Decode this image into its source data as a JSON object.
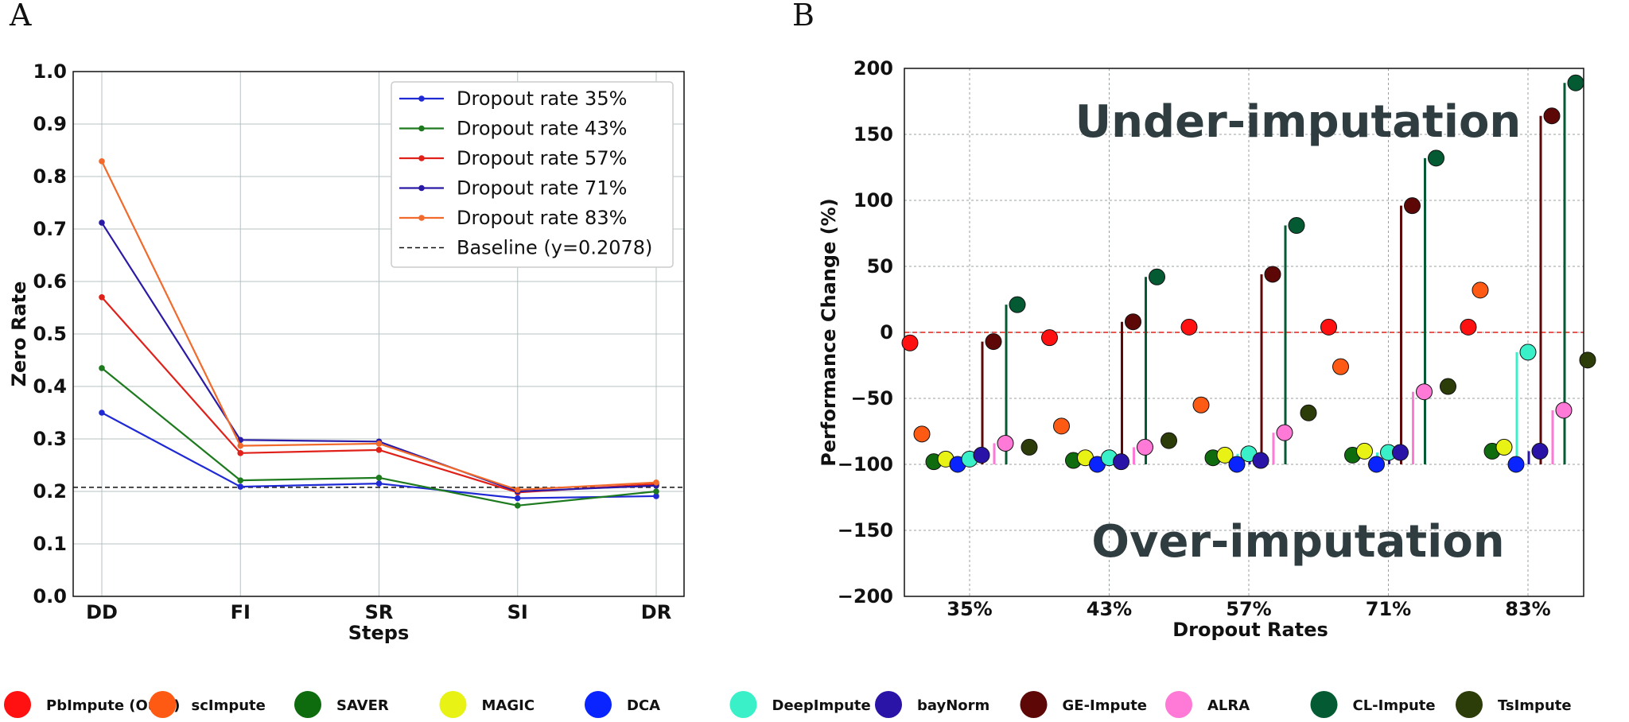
{
  "chart_data": [
    {
      "panel": "A",
      "type": "line",
      "xlabel": "Steps",
      "ylabel": "Zero Rate",
      "categories": [
        "DD",
        "FI",
        "SR",
        "SI",
        "DR"
      ],
      "ylim": [
        0.0,
        1.0
      ],
      "yticks": [
        "0.0",
        "0.1",
        "0.2",
        "0.3",
        "0.4",
        "0.5",
        "0.6",
        "0.7",
        "0.8",
        "0.9",
        "1.0"
      ],
      "grid": true,
      "legend_position": "top-right",
      "series": [
        {
          "name": "Dropout rate 35%",
          "color": "#1f2ad4",
          "values": [
            0.35,
            0.209,
            0.215,
            0.187,
            0.191
          ]
        },
        {
          "name": "Dropout rate 43%",
          "color": "#1e7a1e",
          "values": [
            0.435,
            0.221,
            0.226,
            0.173,
            0.2
          ]
        },
        {
          "name": "Dropout rate 57%",
          "color": "#e0211a",
          "values": [
            0.57,
            0.273,
            0.279,
            0.198,
            0.214
          ]
        },
        {
          "name": "Dropout rate 71%",
          "color": "#2a1aa6",
          "values": [
            0.712,
            0.298,
            0.295,
            0.2,
            0.211
          ]
        },
        {
          "name": "Dropout rate 83%",
          "color": "#f26a2b",
          "values": [
            0.829,
            0.287,
            0.291,
            0.203,
            0.217
          ]
        }
      ],
      "baseline": {
        "name": "Baseline (y=0.2078)",
        "value": 0.2078,
        "color": "#111111"
      }
    },
    {
      "panel": "B",
      "type": "scatter",
      "xlabel": "Dropout Rates",
      "ylabel": "Performance Change (%)",
      "categories": [
        "35%",
        "43%",
        "57%",
        "71%",
        "83%"
      ],
      "ylim": [
        -200,
        200
      ],
      "yticks": [
        "200",
        "150",
        "100",
        "50",
        "0",
        "−50",
        "−100",
        "−150",
        "−200"
      ],
      "grid": true,
      "zero_line_color": "#e0211a",
      "annotations": [
        "Under-imputation",
        "Over-imputation"
      ],
      "methods": [
        {
          "name": "PbImpute (Ours)",
          "color": "#ff1111",
          "values": [
            -8,
            -4,
            4,
            4,
            4
          ]
        },
        {
          "name": "scImpute",
          "color": "#ff5a14",
          "values": [
            -77,
            -71,
            -55,
            -26,
            32
          ]
        },
        {
          "name": "SAVER",
          "color": "#0e6b0e",
          "values": [
            -98,
            -97,
            -95,
            -93,
            -90
          ]
        },
        {
          "name": "MAGIC",
          "color": "#e8f214",
          "values": [
            -96,
            -95,
            -93,
            -90,
            -87
          ]
        },
        {
          "name": "DCA",
          "color": "#0a24ff",
          "values": [
            -100,
            -100,
            -100,
            -100,
            -100
          ]
        },
        {
          "name": "DeepImpute",
          "color": "#3af0c8",
          "values": [
            -96,
            -95,
            -92,
            -91,
            -15
          ]
        },
        {
          "name": "bayNorm",
          "color": "#2a14a8",
          "values": [
            -93,
            -98,
            -97,
            -91,
            -90
          ]
        },
        {
          "name": "GE-Impute",
          "color": "#5e0707",
          "values": [
            -7,
            8,
            44,
            96,
            164
          ]
        },
        {
          "name": "ALRA",
          "color": "#ff7ad6",
          "values": [
            -84,
            -87,
            -76,
            -45,
            -59
          ]
        },
        {
          "name": "CL-Impute",
          "color": "#045a32",
          "values": [
            21,
            42,
            81,
            132,
            189
          ]
        },
        {
          "name": "TsImpute",
          "color": "#2d3d0a",
          "values": [
            -87,
            -82,
            -61,
            -41,
            -21
          ]
        }
      ]
    }
  ],
  "labels": {
    "panelA": "A",
    "panelB": "B"
  }
}
